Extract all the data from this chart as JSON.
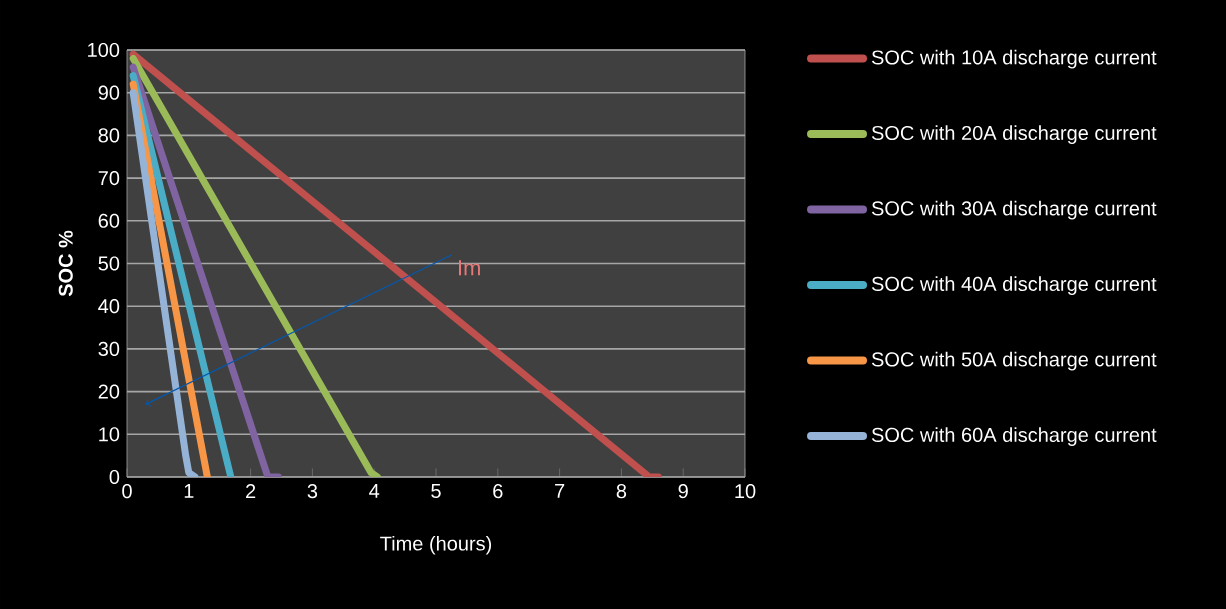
{
  "chart_data": {
    "type": "line",
    "xlabel": "Time (hours)",
    "ylabel": "SOC %",
    "xlim": [
      0,
      10
    ],
    "ylim": [
      0,
      100
    ],
    "xticks": [
      0,
      1,
      2,
      3,
      4,
      5,
      6,
      7,
      8,
      9,
      10
    ],
    "yticks": [
      0,
      10,
      20,
      30,
      40,
      50,
      60,
      70,
      80,
      90,
      100
    ],
    "grid": "y",
    "legend": "right",
    "marker": "none",
    "line_style": "solid",
    "series": [
      {
        "name": "SOC with 10A discharge current",
        "color": "#c0504d",
        "x": [
          0.1,
          8.45,
          8.6
        ],
        "values": [
          99,
          0,
          0
        ]
      },
      {
        "name": "SOC with 20A discharge current",
        "color": "#9bbb59",
        "x": [
          0.1,
          3.95,
          4.05
        ],
        "values": [
          98,
          1,
          0
        ]
      },
      {
        "name": "SOC with 30A discharge current",
        "color": "#8064a2",
        "x": [
          0.1,
          2.28,
          2.45
        ],
        "values": [
          96,
          0,
          0
        ]
      },
      {
        "name": "SOC with 40A discharge current",
        "color": "#4bacc6",
        "x": [
          0.1,
          1.68
        ],
        "values": [
          94,
          0
        ]
      },
      {
        "name": "SOC with 50A discharge current",
        "color": "#f79646",
        "x": [
          0.1,
          1.3
        ],
        "values": [
          92,
          0
        ]
      },
      {
        "name": "SOC with 60A discharge current",
        "color": "#95b3d7",
        "x": [
          0.1,
          0.95,
          1.0,
          1.1
        ],
        "values": [
          90,
          5,
          1,
          0
        ]
      }
    ],
    "annotations": [
      "Im"
    ]
  }
}
